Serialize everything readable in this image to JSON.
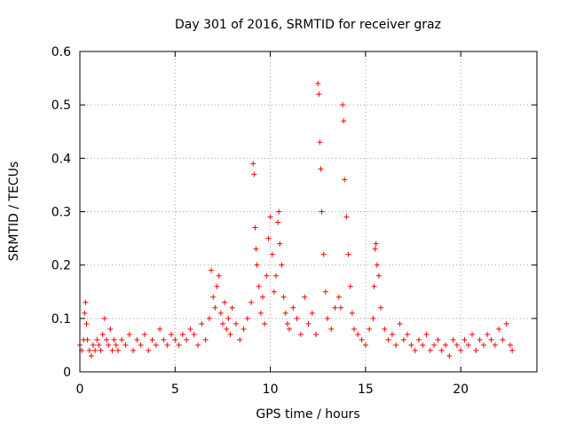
{
  "chart_data": {
    "type": "scatter",
    "title": "Day 301 of 2016, SRMTID for receiver graz",
    "xlabel": "GPS time / hours",
    "ylabel": "SRMTID / TECUs",
    "xlim": [
      0,
      24
    ],
    "ylim": [
      0,
      0.6
    ],
    "x_ticks": [
      0,
      5,
      10,
      15,
      20
    ],
    "x_tick_labels": [
      "0",
      "5",
      "10",
      "15",
      "20"
    ],
    "y_ticks": [
      0,
      0.1,
      0.2,
      0.3,
      0.4,
      0.5,
      0.6
    ],
    "y_tick_labels": [
      "0",
      "0.1",
      "0.2",
      "0.3",
      "0.4",
      "0.5",
      "0.6"
    ],
    "grid": true,
    "marker": "+",
    "color": "#ff0000",
    "series": [
      {
        "name": "SRMTID",
        "x": [
          0.0,
          0.1,
          0.2,
          0.25,
          0.3,
          0.35,
          0.4,
          0.5,
          0.6,
          0.7,
          0.8,
          0.9,
          1.0,
          1.1,
          1.2,
          1.3,
          1.4,
          1.5,
          1.6,
          1.7,
          1.8,
          1.9,
          2.0,
          2.2,
          2.4,
          2.6,
          2.8,
          3.0,
          3.2,
          3.4,
          3.6,
          3.8,
          4.0,
          4.2,
          4.4,
          4.6,
          4.8,
          5.0,
          5.2,
          5.4,
          5.6,
          5.8,
          6.0,
          6.2,
          6.4,
          6.6,
          6.8,
          6.9,
          7.0,
          7.1,
          7.2,
          7.3,
          7.4,
          7.5,
          7.6,
          7.7,
          7.8,
          7.9,
          8.0,
          8.2,
          8.4,
          8.6,
          8.8,
          9.0,
          9.1,
          9.15,
          9.2,
          9.25,
          9.3,
          9.4,
          9.5,
          9.6,
          9.7,
          9.8,
          9.9,
          10.0,
          10.1,
          10.2,
          10.3,
          10.4,
          10.45,
          10.5,
          10.6,
          10.7,
          10.8,
          10.9,
          11.0,
          11.2,
          11.4,
          11.6,
          11.8,
          12.0,
          12.2,
          12.4,
          12.5,
          12.55,
          12.6,
          12.65,
          12.7,
          12.8,
          12.9,
          13.0,
          13.2,
          13.4,
          13.6,
          13.7,
          13.8,
          13.85,
          13.9,
          14.0,
          14.1,
          14.2,
          14.3,
          14.4,
          14.6,
          14.8,
          15.0,
          15.2,
          15.4,
          15.45,
          15.5,
          15.55,
          15.6,
          15.7,
          15.8,
          16.0,
          16.2,
          16.4,
          16.6,
          16.8,
          17.0,
          17.2,
          17.4,
          17.6,
          17.8,
          18.0,
          18.2,
          18.4,
          18.6,
          18.8,
          19.0,
          19.2,
          19.4,
          19.6,
          19.8,
          20.0,
          20.2,
          20.4,
          20.6,
          20.8,
          21.0,
          21.2,
          21.4,
          21.6,
          21.8,
          22.0,
          22.2,
          22.4,
          22.6,
          22.7
        ],
        "y": [
          0.05,
          0.04,
          0.06,
          0.11,
          0.13,
          0.09,
          0.06,
          0.04,
          0.03,
          0.05,
          0.04,
          0.06,
          0.05,
          0.04,
          0.07,
          0.1,
          0.06,
          0.05,
          0.08,
          0.04,
          0.06,
          0.05,
          0.04,
          0.06,
          0.05,
          0.07,
          0.04,
          0.06,
          0.05,
          0.07,
          0.04,
          0.06,
          0.05,
          0.08,
          0.06,
          0.05,
          0.07,
          0.06,
          0.05,
          0.07,
          0.06,
          0.08,
          0.07,
          0.05,
          0.09,
          0.06,
          0.1,
          0.19,
          0.14,
          0.12,
          0.16,
          0.18,
          0.11,
          0.09,
          0.13,
          0.08,
          0.1,
          0.07,
          0.12,
          0.09,
          0.06,
          0.08,
          0.1,
          0.13,
          0.39,
          0.37,
          0.27,
          0.23,
          0.2,
          0.16,
          0.11,
          0.14,
          0.09,
          0.18,
          0.25,
          0.29,
          0.22,
          0.15,
          0.18,
          0.28,
          0.3,
          0.24,
          0.2,
          0.14,
          0.11,
          0.09,
          0.08,
          0.12,
          0.1,
          0.07,
          0.14,
          0.09,
          0.11,
          0.07,
          0.54,
          0.52,
          0.43,
          0.38,
          0.3,
          0.22,
          0.15,
          0.1,
          0.08,
          0.12,
          0.14,
          0.12,
          0.5,
          0.47,
          0.36,
          0.29,
          0.22,
          0.16,
          0.11,
          0.08,
          0.07,
          0.06,
          0.05,
          0.08,
          0.1,
          0.16,
          0.23,
          0.24,
          0.2,
          0.18,
          0.12,
          0.08,
          0.06,
          0.07,
          0.05,
          0.09,
          0.06,
          0.07,
          0.05,
          0.04,
          0.06,
          0.05,
          0.07,
          0.04,
          0.05,
          0.06,
          0.04,
          0.05,
          0.03,
          0.06,
          0.05,
          0.04,
          0.06,
          0.05,
          0.07,
          0.04,
          0.06,
          0.05,
          0.07,
          0.06,
          0.05,
          0.08,
          0.06,
          0.09,
          0.05,
          0.04
        ]
      }
    ]
  }
}
